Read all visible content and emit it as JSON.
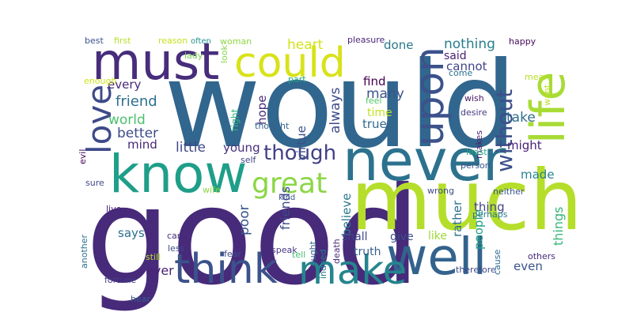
{
  "word_cloud": {
    "words": [
      {
        "text": "would",
        "color": "#31668e"
      },
      {
        "text": "good",
        "color": "#472a7a"
      },
      {
        "text": "much",
        "color": "#b5de2b"
      },
      {
        "text": "know",
        "color": "#1f9e89"
      },
      {
        "text": "well",
        "color": "#33638d"
      },
      {
        "text": "never",
        "color": "#2c728e"
      },
      {
        "text": "must",
        "color": "#472d7b"
      },
      {
        "text": "could",
        "color": "#d8e219"
      },
      {
        "text": "life",
        "color": "#a8db34"
      },
      {
        "text": "think",
        "color": "#3b528b"
      },
      {
        "text": "make",
        "color": "#25858e"
      },
      {
        "text": "love",
        "color": "#3e4a89"
      },
      {
        "text": "upon",
        "color": "#3b528b"
      },
      {
        "text": "great",
        "color": "#8bd646"
      },
      {
        "text": "though",
        "color": "#424086"
      },
      {
        "text": "without",
        "color": "#3d4e8a"
      },
      {
        "text": "nothing",
        "color": "#277f8e"
      },
      {
        "text": "heart",
        "color": "#d2e21b"
      },
      {
        "text": "done",
        "color": "#2a788e"
      },
      {
        "text": "said",
        "color": "#482173"
      },
      {
        "text": "cannot",
        "color": "#414487"
      },
      {
        "text": "every",
        "color": "#482979"
      },
      {
        "text": "friend",
        "color": "#2d708e"
      },
      {
        "text": "world",
        "color": "#4ac16d"
      },
      {
        "text": "better",
        "color": "#3e4c8a"
      },
      {
        "text": "mind",
        "color": "#482878"
      },
      {
        "text": "little",
        "color": "#3f4788"
      },
      {
        "text": "young",
        "color": "#472f7d"
      },
      {
        "text": "virtue",
        "color": "#3c508b"
      },
      {
        "text": "always",
        "color": "#3e4989"
      },
      {
        "text": "find",
        "color": "#440154"
      },
      {
        "text": "many",
        "color": "#3b528b"
      },
      {
        "text": "time",
        "color": "#c2df23"
      },
      {
        "text": "true",
        "color": "#31688e"
      },
      {
        "text": "hope",
        "color": "#472d7b"
      },
      {
        "text": "take",
        "color": "#2e6e8e"
      },
      {
        "text": "might",
        "color": "#482173"
      },
      {
        "text": "made",
        "color": "#26828e"
      },
      {
        "text": "friends",
        "color": "#3e4989"
      },
      {
        "text": "poor",
        "color": "#39558c"
      },
      {
        "text": "believe",
        "color": "#2a788e"
      },
      {
        "text": "thing",
        "color": "#414487"
      },
      {
        "text": "rather",
        "color": "#2c728e"
      },
      {
        "text": "people",
        "color": "#1fa088"
      },
      {
        "text": "things",
        "color": "#35b779"
      },
      {
        "text": "shall",
        "color": "#3f4788"
      },
      {
        "text": "give",
        "color": "#3d4d8a"
      },
      {
        "text": "like",
        "color": "#9dd93b"
      },
      {
        "text": "truth",
        "color": "#355f8d"
      },
      {
        "text": "even",
        "color": "#3a548c"
      },
      {
        "text": "says",
        "color": "#2e6e8e"
      },
      {
        "text": "ever",
        "color": "#482475"
      },
      {
        "text": "best",
        "color": "#3b528b"
      },
      {
        "text": "first",
        "color": "#b8de29"
      },
      {
        "text": "reason",
        "color": "#c8e020"
      },
      {
        "text": "often",
        "color": "#21908d"
      },
      {
        "text": "woman",
        "color": "#8fd744"
      },
      {
        "text": "pleasure",
        "color": "#482677"
      },
      {
        "text": "happy",
        "color": "#46085c"
      },
      {
        "text": "lady",
        "color": "#7ad151"
      },
      {
        "text": "look",
        "color": "#86d549"
      },
      {
        "text": "part",
        "color": "#20a386"
      },
      {
        "text": "come",
        "color": "#2d708e"
      },
      {
        "text": "enough",
        "color": "#d0e11c"
      },
      {
        "text": "mean",
        "color": "#b5de2b"
      },
      {
        "text": "wish",
        "color": "#481668"
      },
      {
        "text": "want",
        "color": "#c0df25"
      },
      {
        "text": "feel",
        "color": "#54c568"
      },
      {
        "text": "desire",
        "color": "#453882"
      },
      {
        "text": "right",
        "color": "#2fb47c"
      },
      {
        "text": "thought",
        "color": "#32648e"
      },
      {
        "text": "self",
        "color": "#414487"
      },
      {
        "text": "person",
        "color": "#3a548c"
      },
      {
        "text": "makes",
        "color": "#481f70"
      },
      {
        "text": "least",
        "color": "#22a884"
      },
      {
        "text": "evil",
        "color": "#440154"
      },
      {
        "text": "sure",
        "color": "#3e4989"
      },
      {
        "text": "wife",
        "color": "#8bd646"
      },
      {
        "text": "kind",
        "color": "#3b528b"
      },
      {
        "text": "wrong",
        "color": "#3e4a89"
      },
      {
        "text": "neither",
        "color": "#3b528b"
      },
      {
        "text": "live",
        "color": "#482475"
      },
      {
        "text": "care",
        "color": "#472c7a"
      },
      {
        "text": "less",
        "color": "#3e4a89"
      },
      {
        "text": "death",
        "color": "#472c7a"
      },
      {
        "text": "ought",
        "color": "#31688e"
      },
      {
        "text": "indeed",
        "color": "#287c8e"
      },
      {
        "text": "perhaps",
        "color": "#2a788e"
      },
      {
        "text": "cause",
        "color": "#2f6b8e"
      },
      {
        "text": "another",
        "color": "#2d708e"
      },
      {
        "text": "fortune",
        "color": "#424086"
      },
      {
        "text": "still",
        "color": "#b8de29"
      },
      {
        "text": "fear",
        "color": "#3e4c8a"
      },
      {
        "text": "speak",
        "color": "#463480"
      },
      {
        "text": "tell",
        "color": "#44bf70"
      },
      {
        "text": "hear",
        "color": "#355f8d"
      },
      {
        "text": "others",
        "color": "#482979"
      },
      {
        "text": "therefore",
        "color": "#3e4a89"
      },
      {
        "text": "read",
        "color": "#2a788e"
      },
      {
        "text": "whose",
        "color": "#3b528b"
      }
    ]
  }
}
